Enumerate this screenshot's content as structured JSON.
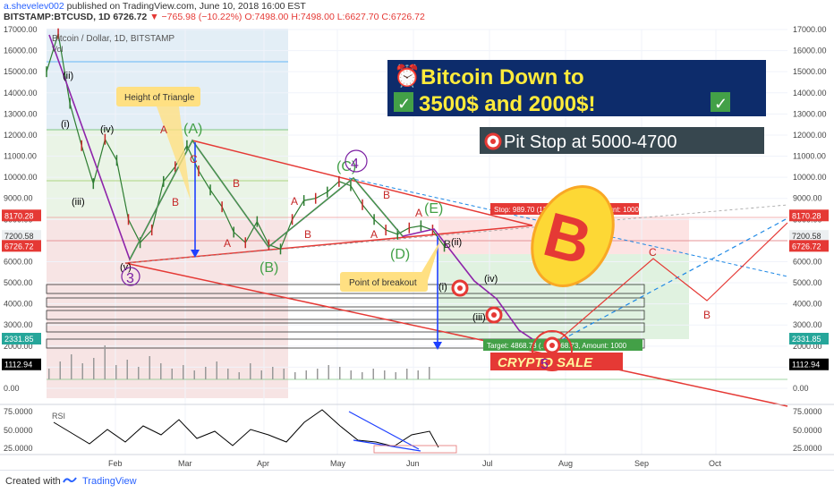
{
  "header": {
    "author": "a.shevelev002",
    "published": "published on TradingView.com, June 10, 2018 16:00 EST",
    "symbol": "BITSTAMP:BTCUSD, 1D",
    "price": "6726.72",
    "change": "−765.98 (−10.22%)",
    "ohlc": {
      "o": "O:7498.00",
      "h": "H:7498.00",
      "l": "L:6627.70",
      "c": "C:6726.72"
    }
  },
  "chart_data": {
    "type": "line",
    "title": "Bitcoin / Dollar, 1D, BITSTAMP",
    "volume_label": "Vol",
    "rsi_label": "RSI",
    "x_ticks": [
      "Feb",
      "Mar",
      "Apr",
      "May",
      "Jun",
      "Jul",
      "Aug",
      "Sep",
      "Oct"
    ],
    "y_ticks": [
      "17000.00",
      "16000.00",
      "15000.00",
      "14000.00",
      "13000.00",
      "12000.00",
      "11000.00",
      "10000.00",
      "9000.00",
      "8000.00",
      "7000.00",
      "6000.00",
      "5000.00",
      "4000.00",
      "3000.00",
      "2000.00",
      "1000.00",
      "0.00"
    ],
    "rsi_ticks": [
      "75.0000",
      "50.0000",
      "25.0000"
    ],
    "ylim": [
      0,
      17000
    ],
    "right_axis_badges": [
      {
        "value": "8170.28",
        "color": "#e53935"
      },
      {
        "value": "7200.58",
        "color": "#eceff1"
      },
      {
        "value": "6726.72",
        "color": "#e53935"
      },
      {
        "value": "2331.85",
        "color": "#26a69a"
      },
      {
        "value": "1112.94",
        "color": "#000000"
      }
    ],
    "left_axis_badges": [
      {
        "value": "8170.28",
        "color": "#e53935"
      },
      {
        "value": "7200.58",
        "color": "#eceff1"
      },
      {
        "value": "6726.72",
        "color": "#e53935"
      },
      {
        "value": "2331.85",
        "color": "#26a69a"
      },
      {
        "value": "1112.94",
        "color": "#000000"
      }
    ],
    "price_series": {
      "name": "BTCUSD",
      "x": [
        0,
        4,
        8,
        12,
        16,
        20,
        24,
        28,
        32,
        36,
        40,
        44,
        48,
        52,
        56,
        60,
        64,
        68,
        72,
        76,
        80,
        84,
        88,
        92,
        96,
        100,
        104,
        108,
        112,
        116,
        120,
        124,
        128,
        132,
        136,
        140,
        144,
        148,
        152,
        156,
        160
      ],
      "y": [
        15000,
        16800,
        13500,
        11500,
        9700,
        11800,
        10800,
        8000,
        6900,
        7500,
        9800,
        10500,
        11500,
        10300,
        9400,
        8600,
        7400,
        6900,
        7900,
        6800,
        6600,
        8000,
        8900,
        9000,
        9300,
        9800,
        9600,
        8700,
        8000,
        7500,
        7300,
        7600,
        7700,
        7500,
        6726,
        null,
        null,
        null,
        null,
        null,
        null
      ]
    },
    "annotations": {
      "headline_line1": "Bitcoin Down to",
      "headline_line2": "3500$ and 2000$!",
      "pit_stop": "Pit Stop at 5000-4700",
      "height_of_triangle": "Height of Triangle",
      "point_of_breakout": "Point of breakout",
      "crypto_sale": "CRYPTO SALE",
      "stop_label": "Stop: 989.70 (13.4…",
      "stop_amount": "amount: 1000",
      "target_label": "Target: 4868.73 (…) 4868.73, Amount: 1000",
      "wave_labels_roman": [
        "(i)",
        "(ii)",
        "(iii)",
        "(iv)",
        "(v)",
        "(i)",
        "(ii)",
        "(iii)",
        "(iv)",
        "(v)"
      ],
      "wave_labels_abc": [
        "(A)",
        "(B)",
        "(C)",
        "(D)",
        "(E)",
        "A",
        "B",
        "C",
        "A",
        "B",
        "A",
        "B",
        "A",
        "B",
        "C"
      ],
      "wave_numbers": [
        "3",
        "4",
        "5"
      ]
    }
  },
  "footer": {
    "created_with": "Created with",
    "brand": "TradingView"
  }
}
